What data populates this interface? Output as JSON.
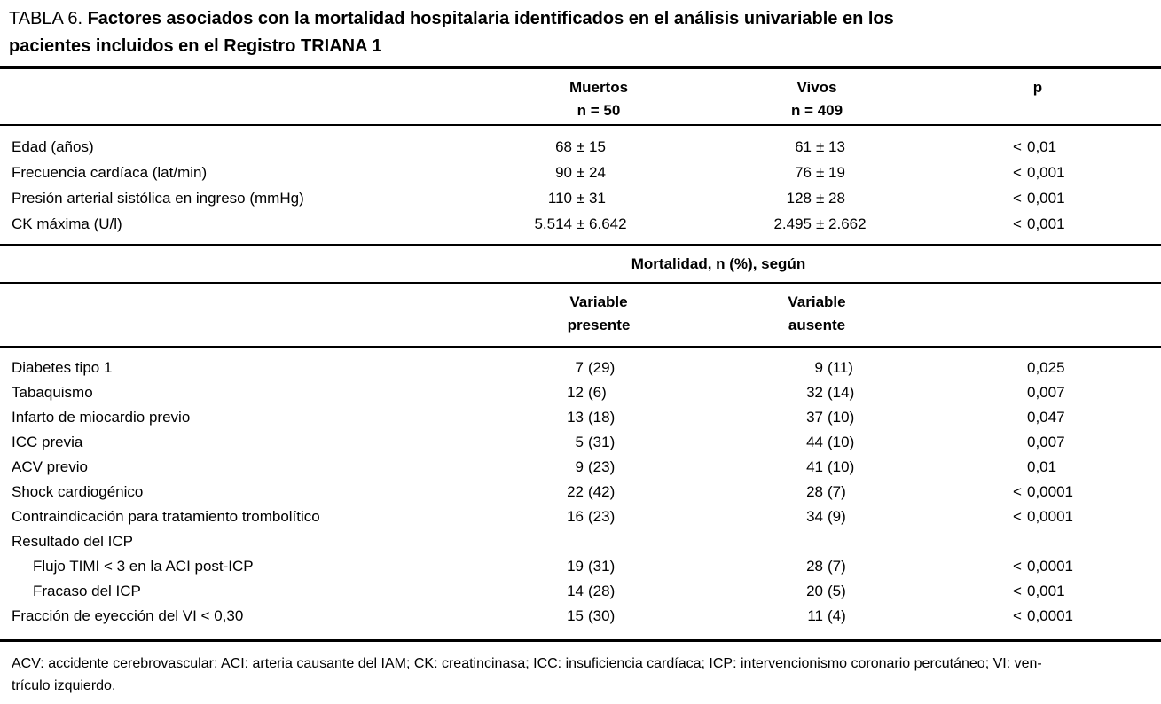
{
  "title": {
    "label": "TABLA 6.",
    "line1": "Factores asociados con la mortalidad hospitalaria identificados en el análisis univariable en los",
    "line2": "pacientes incluidos en el Registro TRIANA 1"
  },
  "table": {
    "section1": {
      "columns": [
        {
          "line1": "Muertos",
          "line2": "n = 50"
        },
        {
          "line1": "Vivos",
          "line2": "n = 409"
        },
        {
          "line1": "p",
          "line2": ""
        }
      ],
      "rows": [
        {
          "label": "Edad (años)",
          "indent": false,
          "dead": [
            "68",
            "± 15"
          ],
          "alive": [
            "61",
            "± 13"
          ],
          "p": [
            "<",
            "0,01"
          ]
        },
        {
          "label": "Frecuencia cardíaca (lat/min)",
          "indent": false,
          "dead": [
            "90",
            "± 24"
          ],
          "alive": [
            "76",
            "± 19"
          ],
          "p": [
            "<",
            "0,001"
          ]
        },
        {
          "label": "Presión arterial sistólica en ingreso (mmHg)",
          "indent": false,
          "dead": [
            "110",
            "± 31"
          ],
          "alive": [
            "128",
            "± 28"
          ],
          "p": [
            "<",
            "0,001"
          ]
        },
        {
          "label": "CK máxima (U/l)",
          "indent": false,
          "dead": [
            "5.514",
            "± 6.642"
          ],
          "alive": [
            "2.495",
            "± 2.662"
          ],
          "p": [
            "<",
            "0,001"
          ]
        }
      ]
    },
    "section2": {
      "group_header": "Mortalidad, n (%), según",
      "columns": [
        {
          "line1": "Variable",
          "line2": "presente"
        },
        {
          "line1": "Variable",
          "line2": "ausente"
        }
      ],
      "rows": [
        {
          "label": "Diabetes tipo 1",
          "indent": false,
          "dead": [
            "7",
            "(29)"
          ],
          "alive": [
            "9",
            "(11)"
          ],
          "p": [
            "",
            "0,025"
          ]
        },
        {
          "label": "Tabaquismo",
          "indent": false,
          "dead": [
            "12",
            "(6)"
          ],
          "alive": [
            "32",
            "(14)"
          ],
          "p": [
            "",
            "0,007"
          ]
        },
        {
          "label": "Infarto de miocardio previo",
          "indent": false,
          "dead": [
            "13",
            "(18)"
          ],
          "alive": [
            "37",
            "(10)"
          ],
          "p": [
            "",
            "0,047"
          ]
        },
        {
          "label": "ICC previa",
          "indent": false,
          "dead": [
            "5",
            "(31)"
          ],
          "alive": [
            "44",
            "(10)"
          ],
          "p": [
            "",
            "0,007"
          ]
        },
        {
          "label": "ACV previo",
          "indent": false,
          "dead": [
            "9",
            "(23)"
          ],
          "alive": [
            "41",
            "(10)"
          ],
          "p": [
            "",
            "0,01"
          ]
        },
        {
          "label": "Shock cardiogénico",
          "indent": false,
          "dead": [
            "22",
            "(42)"
          ],
          "alive": [
            "28",
            "(7)"
          ],
          "p": [
            "<",
            "0,0001"
          ]
        },
        {
          "label": "Contraindicación para tratamiento trombolítico",
          "indent": false,
          "dead": [
            "16",
            "(23)"
          ],
          "alive": [
            "34",
            "(9)"
          ],
          "p": [
            "<",
            "0,0001"
          ]
        },
        {
          "label": "Resultado del ICP",
          "indent": false,
          "dead": [
            "",
            ""
          ],
          "alive": [
            "",
            ""
          ],
          "p": [
            "",
            ""
          ]
        },
        {
          "label": "Flujo TIMI < 3 en la ACI post-ICP",
          "indent": true,
          "dead": [
            "19",
            "(31)"
          ],
          "alive": [
            "28",
            "(7)"
          ],
          "p": [
            "<",
            "0,0001"
          ]
        },
        {
          "label": "Fracaso del ICP",
          "indent": true,
          "dead": [
            "14",
            "(28)"
          ],
          "alive": [
            "20",
            "(5)"
          ],
          "p": [
            "<",
            "0,001"
          ]
        },
        {
          "label": "Fracción de eyección del VI < 0,30",
          "indent": false,
          "dead": [
            "15",
            "(30)"
          ],
          "alive": [
            "11",
            "(4)"
          ],
          "p": [
            "<",
            "0,0001"
          ]
        }
      ]
    },
    "footnote_line1": "ACV: accidente cerebrovascular; ACI: arteria causante del IAM; CK: creatincinasa; ICC: insuficiencia cardíaca; ICP: intervencionismo coronario percutáneo; VI: ven-",
    "footnote_line2": "trículo izquierdo."
  }
}
